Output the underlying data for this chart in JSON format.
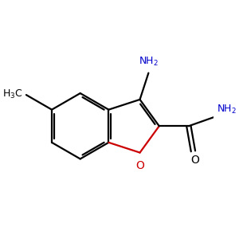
{
  "bg_color": "#ffffff",
  "bond_color": "#000000",
  "oxygen_color": "#cc0000",
  "nitrogen_color": "#0000cc",
  "figsize": [
    3.0,
    3.0
  ],
  "dpi": 100,
  "bond_lw": 1.6,
  "font_size": 9.0
}
